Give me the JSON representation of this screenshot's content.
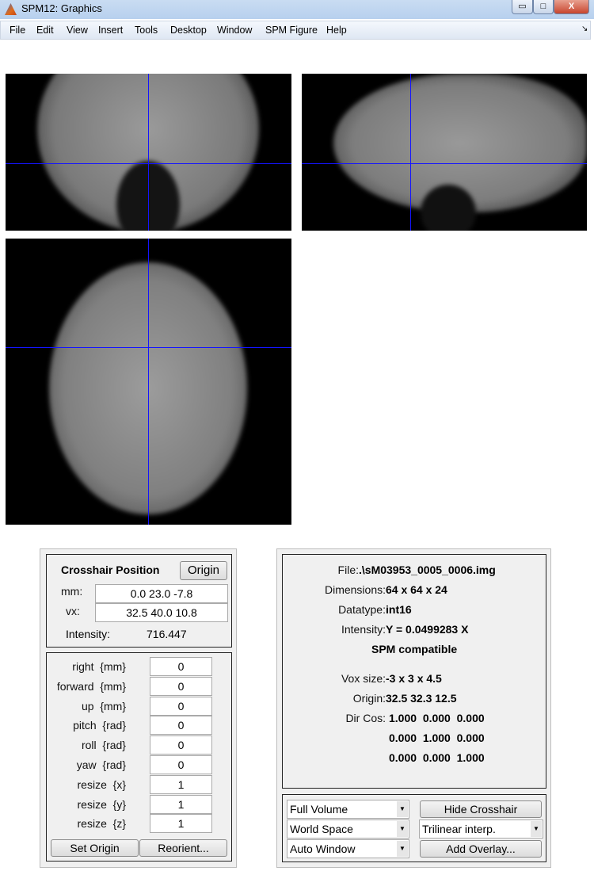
{
  "window": {
    "title": "SPM12: Graphics",
    "minimize": "▭",
    "maximize": "□",
    "close": "X"
  },
  "menu": [
    "File",
    "Edit",
    "View",
    "Insert",
    "Tools",
    "Desktop",
    "Window",
    "SPM Figure",
    "Help"
  ],
  "menu_dock": "↘",
  "crosshair": {
    "title": "Crosshair Position",
    "origin_button": "Origin",
    "mm_label": "mm:",
    "mm_value": "0.0 23.0 -7.8",
    "vx_label": "vx:",
    "vx_value": "32.5 40.0 10.8",
    "intensity_label": "Intensity:",
    "intensity_value": "716.447"
  },
  "transform": {
    "rows": [
      {
        "label": "right  {mm}",
        "value": "0"
      },
      {
        "label": "forward  {mm}",
        "value": "0"
      },
      {
        "label": "up  {mm}",
        "value": "0"
      },
      {
        "label": "pitch  {rad}",
        "value": "0"
      },
      {
        "label": "roll  {rad}",
        "value": "0"
      },
      {
        "label": "yaw  {rad}",
        "value": "0"
      },
      {
        "label": "resize  {x}",
        "value": "1"
      },
      {
        "label": "resize  {y}",
        "value": "1"
      },
      {
        "label": "resize  {z}",
        "value": "1"
      }
    ],
    "set_origin": "Set Origin",
    "reorient": "Reorient..."
  },
  "info": {
    "file_label": "File:",
    "file": ".\\sM03953_0005_0006.img",
    "dim_label": "Dimensions:",
    "dim": "64 x 64 x 24",
    "dtype_label": "Datatype:",
    "dtype": "int16",
    "int_label": "Intensity:",
    "int": "Y = 0.0499283 X",
    "compat": "SPM compatible",
    "vox_label": "Vox size:",
    "vox": "-3 x 3 x 4.5",
    "origin_label": "Origin:",
    "origin": "32.5 32.3 12.5",
    "dircos_label": "Dir Cos:",
    "dircos": [
      "1.000  0.000  0.000",
      "0.000  1.000  0.000",
      "0.000  0.000  1.000"
    ]
  },
  "controls": {
    "volume": "Full Volume",
    "space": "World Space",
    "window": "Auto Window",
    "hide_crosshair": "Hide Crosshair",
    "interp": "Trilinear interp.",
    "add_overlay": "Add Overlay..."
  },
  "colors": {
    "crosshair": "#1414ff"
  }
}
